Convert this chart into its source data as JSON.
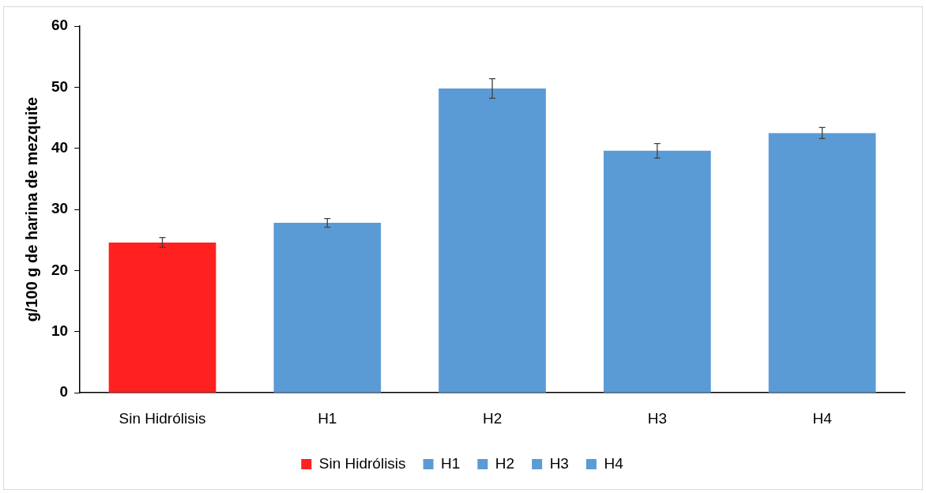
{
  "chart_data": {
    "type": "bar",
    "ylabel": "g/100 g de harina de mezquite",
    "categories": [
      "Sin Hidrólisis",
      "H1",
      "H2",
      "H3",
      "H4"
    ],
    "series": [
      {
        "name": "Sin Hidrólisis",
        "color": "#ff2020",
        "values": [
          24.6,
          null,
          null,
          null,
          null
        ],
        "errors": [
          0.8,
          null,
          null,
          null,
          null
        ]
      },
      {
        "name": "H1",
        "color": "#5b9bd5",
        "values": [
          null,
          27.8,
          null,
          null,
          null
        ],
        "errors": [
          null,
          0.7,
          null,
          null,
          null
        ]
      },
      {
        "name": "H2",
        "color": "#5b9bd5",
        "values": [
          null,
          null,
          49.8,
          null,
          null
        ],
        "errors": [
          null,
          null,
          1.6,
          null,
          null
        ]
      },
      {
        "name": "H3",
        "color": "#5b9bd5",
        "values": [
          null,
          null,
          null,
          39.6,
          null
        ],
        "errors": [
          null,
          null,
          null,
          1.2,
          null
        ]
      },
      {
        "name": "H4",
        "color": "#5b9bd5",
        "values": [
          null,
          null,
          null,
          null,
          42.5
        ],
        "errors": [
          null,
          null,
          null,
          null,
          0.9
        ]
      }
    ],
    "ylim": [
      0,
      60
    ],
    "yticks": [
      0,
      10,
      20,
      30,
      40,
      50,
      60
    ],
    "legend": "bottom"
  }
}
